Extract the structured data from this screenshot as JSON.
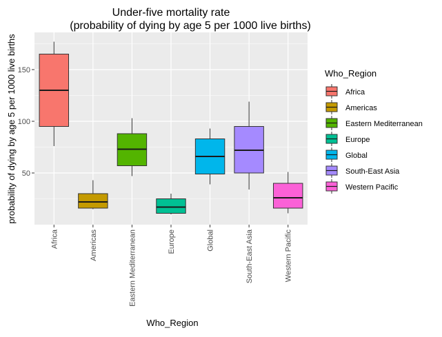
{
  "chart_data": {
    "type": "boxplot",
    "title_line1": "Under-five mortality rate",
    "title_line2": "(probability of dying by age 5 per 1000 live births)",
    "xlabel": "Who_Region",
    "ylabel": "probability of dying by age 5 per 1000 live births",
    "ylim": [
      0,
      186
    ],
    "yticks": [
      50,
      100,
      150
    ],
    "grid": true,
    "legend": {
      "title": "Who_Region",
      "placement": "right"
    },
    "categories": [
      "Africa",
      "Americas",
      "Eastern Mediterranean",
      "Europe",
      "Global",
      "South-East Asia",
      "Western Pacific"
    ],
    "colors": [
      "#F8766D",
      "#C49A00",
      "#53B400",
      "#00C094",
      "#00B6EB",
      "#A58AFF",
      "#FB61D7"
    ],
    "boxes": [
      {
        "min": 76,
        "q1": 95,
        "median": 130,
        "q3": 165,
        "max": 177
      },
      {
        "min": 15,
        "q1": 16,
        "median": 22,
        "q3": 30,
        "max": 43
      },
      {
        "min": 47,
        "q1": 57,
        "median": 73,
        "q3": 88,
        "max": 103
      },
      {
        "min": 10,
        "q1": 11,
        "median": 17,
        "q3": 25,
        "max": 30
      },
      {
        "min": 39,
        "q1": 49,
        "median": 66,
        "q3": 83,
        "max": 93
      },
      {
        "min": 34,
        "q1": 50,
        "median": 72,
        "q3": 95,
        "max": 119
      },
      {
        "min": 11,
        "q1": 16,
        "median": 26,
        "q3": 40,
        "max": 51
      }
    ]
  }
}
